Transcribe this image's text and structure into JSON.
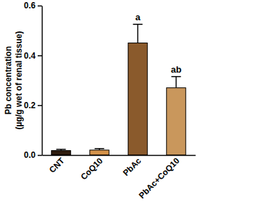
{
  "chart_data": {
    "type": "bar",
    "ylabel": [
      "Pb concentration",
      "(µg/g wet of renal tissue)"
    ],
    "categories": [
      "CNT",
      "CoQ10",
      "PbAc",
      "PbAc+CoQ10"
    ],
    "values": [
      0.018,
      0.02,
      0.45,
      0.27
    ],
    "errors": [
      0.005,
      0.006,
      0.075,
      0.045
    ],
    "annotations": [
      null,
      null,
      "a",
      "ab"
    ],
    "colors": [
      "#2e1c0f",
      "#d4924a",
      "#8a5a2c",
      "#c9975c"
    ],
    "ylim": [
      0,
      0.6
    ],
    "yticks": [
      {
        "value": 0,
        "label": "0.0"
      },
      0.2,
      0.4,
      0.6
    ],
    "grid": false
  }
}
